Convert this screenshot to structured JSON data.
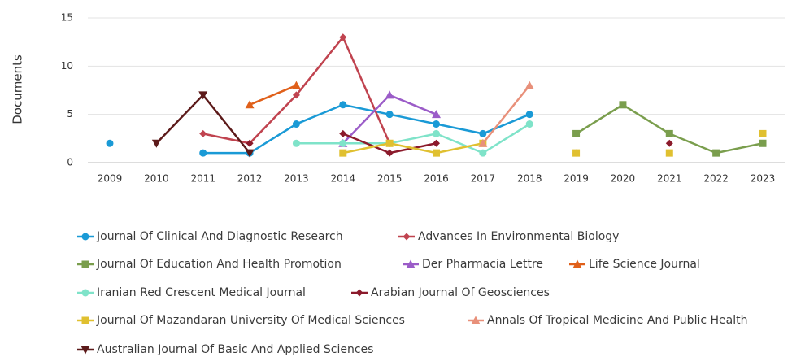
{
  "chart_data": {
    "type": "line",
    "y_label": "Documents",
    "categories": [
      "2009",
      "2010",
      "2011",
      "2012",
      "2013",
      "2014",
      "2015",
      "2016",
      "2017",
      "2018",
      "2019",
      "2020",
      "2021",
      "2022",
      "2023"
    ],
    "ylim": [
      0,
      15
    ],
    "yticks": [
      0,
      5,
      10,
      15
    ],
    "grid": true,
    "series": [
      {
        "name": "Journal Of Clinical And Diagnostic Research",
        "color": "#1a9ad6",
        "marker": "circle",
        "values": [
          2,
          null,
          1,
          1,
          4,
          6,
          5,
          4,
          3,
          5,
          null,
          null,
          null,
          null,
          null
        ]
      },
      {
        "name": "Advances In Environmental Biology",
        "color": "#c0434f",
        "marker": "diamond",
        "values": [
          null,
          null,
          3,
          2,
          7,
          13,
          2,
          null,
          null,
          null,
          null,
          null,
          null,
          null,
          null
        ]
      },
      {
        "name": "Journal Of Education And Health Promotion",
        "color": "#7a9e4d",
        "marker": "square",
        "values": [
          null,
          null,
          null,
          null,
          null,
          null,
          null,
          null,
          null,
          null,
          3,
          6,
          3,
          1,
          2
        ]
      },
      {
        "name": "Der Pharmacia Lettre",
        "color": "#9b5cc8",
        "marker": "triangle",
        "values": [
          null,
          null,
          null,
          null,
          null,
          2,
          7,
          5,
          null,
          null,
          null,
          null,
          null,
          null,
          null
        ]
      },
      {
        "name": "Life Science Journal",
        "color": "#e0601a",
        "marker": "triangle",
        "values": [
          null,
          null,
          null,
          6,
          8,
          null,
          null,
          null,
          null,
          null,
          null,
          null,
          null,
          null,
          null
        ]
      },
      {
        "name": "Iranian Red Crescent Medical Journal",
        "color": "#7fe3c9",
        "marker": "circle",
        "values": [
          null,
          null,
          null,
          null,
          2,
          2,
          2,
          3,
          1,
          4,
          null,
          null,
          null,
          null,
          null
        ]
      },
      {
        "name": "Arabian Journal Of Geosciences",
        "color": "#8b1a2b",
        "marker": "diamond",
        "values": [
          null,
          null,
          null,
          2,
          null,
          3,
          1,
          2,
          null,
          null,
          1,
          null,
          2,
          null,
          null
        ]
      },
      {
        "name": "Journal Of Mazandaran University Of Medical Sciences",
        "color": "#e0c030",
        "marker": "square",
        "values": [
          null,
          null,
          null,
          null,
          null,
          1,
          2,
          1,
          2,
          null,
          1,
          null,
          1,
          null,
          3
        ]
      },
      {
        "name": "Annals Of Tropical Medicine And Public Health",
        "color": "#e8907a",
        "marker": "triangle",
        "values": [
          null,
          null,
          null,
          null,
          null,
          null,
          null,
          null,
          2,
          8,
          null,
          null,
          null,
          null,
          null
        ]
      },
      {
        "name": "Australian Journal Of Basic And Applied Sciences",
        "color": "#5c1a1a",
        "marker": "triangle-down",
        "values": [
          null,
          2,
          7,
          1,
          null,
          null,
          null,
          null,
          null,
          null,
          null,
          null,
          null,
          null,
          null
        ]
      }
    ]
  }
}
